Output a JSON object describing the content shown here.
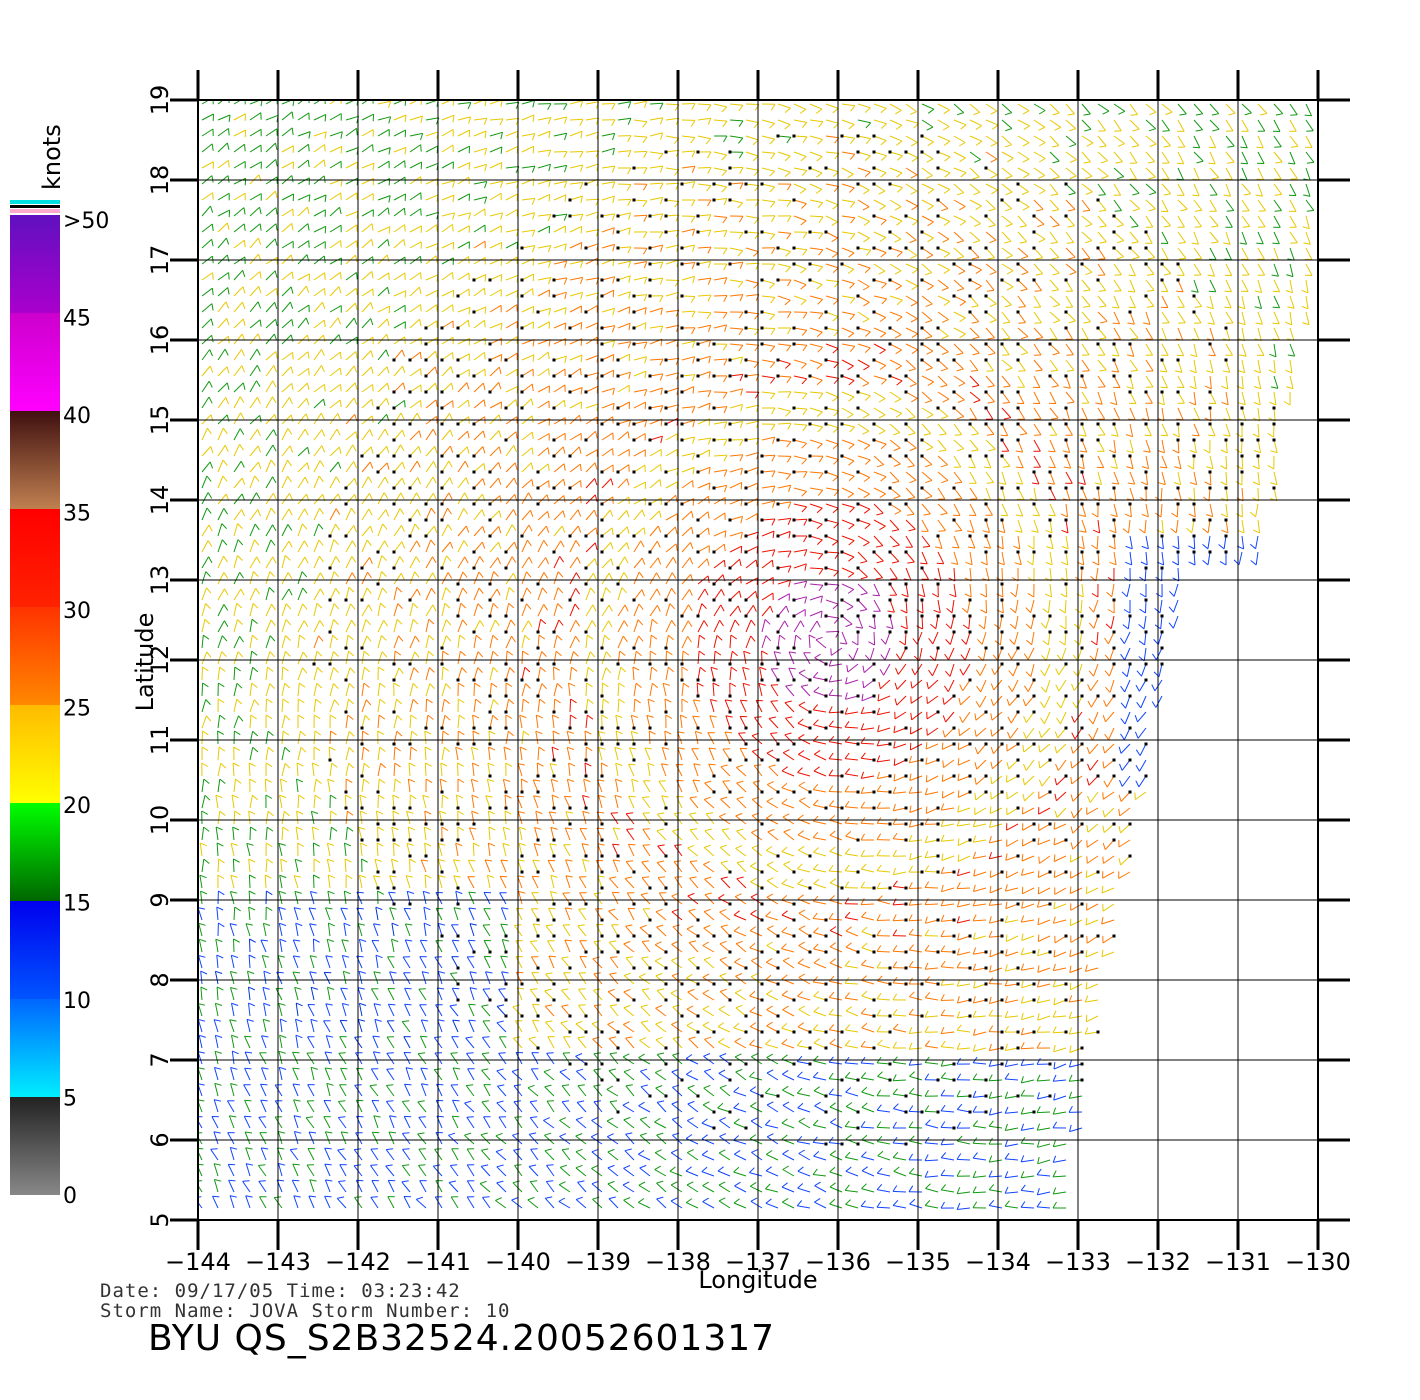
{
  "plot": {
    "x_axis_label": "Longitude",
    "y_axis_label": "Latitude",
    "x_ticks": [
      "-144",
      "-143",
      "-142",
      "-141",
      "-140",
      "-139",
      "-138",
      "-137",
      "-136",
      "-135",
      "-134",
      "-133",
      "-132",
      "-131",
      "-130"
    ],
    "y_ticks": [
      "5",
      "6",
      "7",
      "8",
      "9",
      "10",
      "11",
      "12",
      "13",
      "14",
      "15",
      "16",
      "17",
      "18",
      "19"
    ],
    "x_range": [
      -144,
      -130
    ],
    "y_range": [
      5,
      19
    ],
    "grid": true
  },
  "colorbar": {
    "unit_label": "knots",
    "tick_labels": [
      "0",
      "5",
      "10",
      "15",
      "20",
      "25",
      "30",
      "35",
      "40",
      "45",
      ">50"
    ],
    "colors": {
      "0_5": [
        "#888888",
        "#222222"
      ],
      "5_10": [
        "#00eeff",
        "#0066ff"
      ],
      "10_15": [
        "#0055ff",
        "#0000ee"
      ],
      "15_20": [
        "#006600",
        "#00ff00"
      ],
      "20_25": [
        "#ffff00",
        "#ffbb00"
      ],
      "25_30": [
        "#ff8800",
        "#ff4400"
      ],
      "30_35": [
        "#ff2200",
        "#ff0000"
      ],
      "35_40": [
        "#c08050",
        "#401010"
      ],
      "40_45": [
        "#ff00ff",
        "#cc00cc"
      ],
      "45_50": [
        "#aa00cc",
        "#6010c0"
      ]
    }
  },
  "footer": {
    "date_line": "Date: 09/17/05   Time: 03:23:42",
    "storm_line": "Storm Name: JOVA   Storm Number: 10",
    "product_title": "BYU QS_S2B32524.20052601317"
  }
}
